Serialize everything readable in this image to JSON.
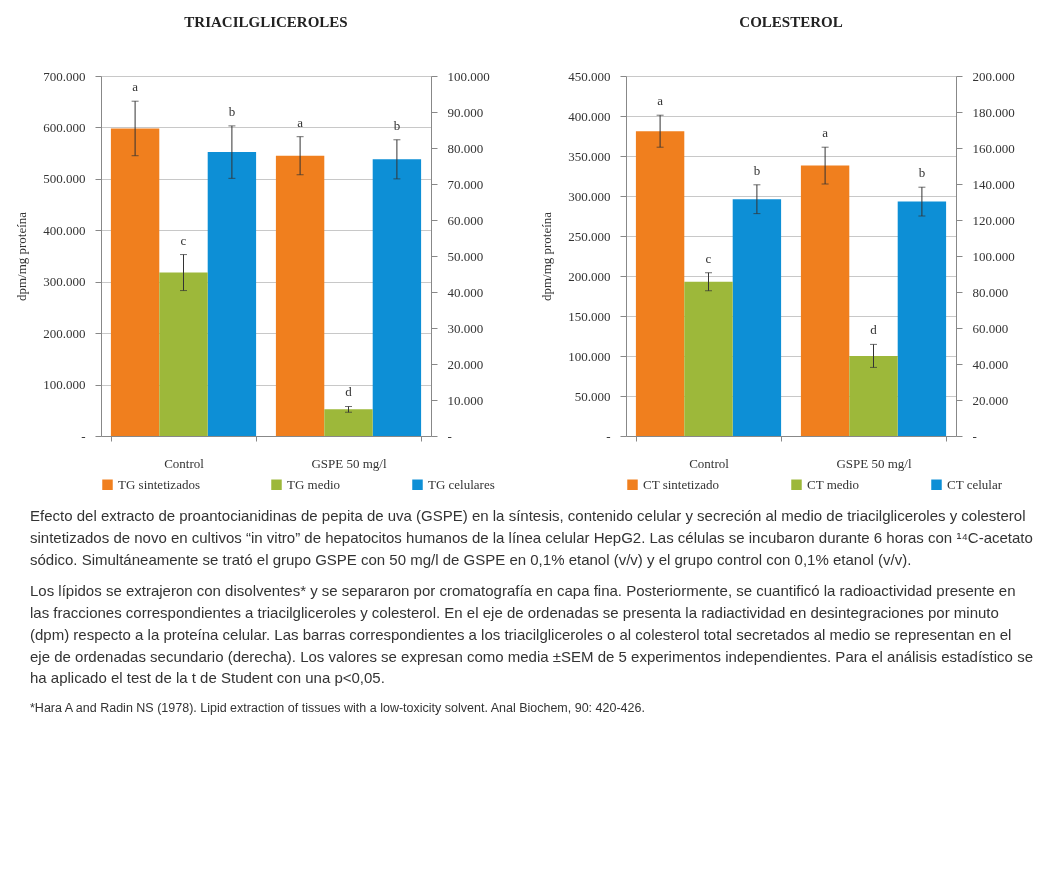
{
  "chart_data": [
    {
      "type": "bar",
      "title": "TRIACILGLICEROLES",
      "ylabel": "dpm/mg proteína",
      "categories": [
        "Control",
        "GSPE 50 mg/l"
      ],
      "series": [
        {
          "name": "TG sintetizados",
          "color": "#f07f1e",
          "values": [
            598000,
            545000
          ],
          "errors": [
            53000,
            37000
          ],
          "value_labels": [
            "a",
            "a"
          ]
        },
        {
          "name": "TG medio",
          "color": "#9db83a",
          "axis": "y2",
          "values": [
            45400,
            7400
          ],
          "errors": [
            5000,
            800
          ],
          "value_labels": [
            "c",
            "d"
          ]
        },
        {
          "name": "TG celulares",
          "color": "#0d8fd6",
          "values": [
            552000,
            538000
          ],
          "errors": [
            51000,
            38000
          ],
          "value_labels": [
            "b",
            "b"
          ]
        }
      ],
      "ylim": [
        0,
        700000
      ],
      "yticks": [
        {
          "value": 0,
          "label": "-"
        },
        {
          "value": 100000,
          "label": "100.000"
        },
        {
          "value": 200000,
          "label": "200.000"
        },
        {
          "value": 300000,
          "label": "300.000"
        },
        {
          "value": 400000,
          "label": "400.000"
        },
        {
          "value": 500000,
          "label": "500.000"
        },
        {
          "value": 600000,
          "label": "600.000"
        },
        {
          "value": 700000,
          "label": "700.000"
        }
      ],
      "y2lim": [
        0,
        100000
      ],
      "y2ticks": [
        {
          "value": 0,
          "label": "-"
        },
        {
          "value": 10000,
          "label": "10.000"
        },
        {
          "value": 20000,
          "label": "20.000"
        },
        {
          "value": 30000,
          "label": "30.000"
        },
        {
          "value": 40000,
          "label": "40.000"
        },
        {
          "value": 50000,
          "label": "50.000"
        },
        {
          "value": 60000,
          "label": "60.000"
        },
        {
          "value": 70000,
          "label": "70.000"
        },
        {
          "value": 80000,
          "label": "80.000"
        },
        {
          "value": 90000,
          "label": "90.000"
        },
        {
          "value": 100000,
          "label": "100.000"
        }
      ],
      "grid": "y",
      "legend": "bottom"
    },
    {
      "type": "bar",
      "title": "COLESTEROL",
      "ylabel": "dpm/mg proteína",
      "categories": [
        "Control",
        "GSPE 50 mg/l"
      ],
      "series": [
        {
          "name": "CT sintetizado",
          "color": "#f07f1e",
          "values": [
            381000,
            338000
          ],
          "errors": [
            20000,
            23000
          ],
          "value_labels": [
            "a",
            "a"
          ]
        },
        {
          "name": "CT medio",
          "color": "#9db83a",
          "axis": "y2",
          "values": [
            85700,
            44500
          ],
          "errors": [
            5000,
            6400
          ],
          "value_labels": [
            "c",
            "d"
          ]
        },
        {
          "name": "CT celular",
          "color": "#0d8fd6",
          "values": [
            296000,
            293000
          ],
          "errors": [
            18000,
            18000
          ],
          "value_labels": [
            "b",
            "b"
          ]
        }
      ],
      "ylim": [
        0,
        450000
      ],
      "yticks": [
        {
          "value": 0,
          "label": "-"
        },
        {
          "value": 50000,
          "label": "50.000"
        },
        {
          "value": 100000,
          "label": "100.000"
        },
        {
          "value": 150000,
          "label": "150.000"
        },
        {
          "value": 200000,
          "label": "200.000"
        },
        {
          "value": 250000,
          "label": "250.000"
        },
        {
          "value": 300000,
          "label": "300.000"
        },
        {
          "value": 350000,
          "label": "350.000"
        },
        {
          "value": 400000,
          "label": "400.000"
        },
        {
          "value": 450000,
          "label": "450.000"
        }
      ],
      "y2lim": [
        0,
        200000
      ],
      "y2ticks": [
        {
          "value": 0,
          "label": "-"
        },
        {
          "value": 20000,
          "label": "20.000"
        },
        {
          "value": 40000,
          "label": "40.000"
        },
        {
          "value": 60000,
          "label": "60.000"
        },
        {
          "value": 80000,
          "label": "80.000"
        },
        {
          "value": 100000,
          "label": "100.000"
        },
        {
          "value": 120000,
          "label": "120.000"
        },
        {
          "value": 140000,
          "label": "140.000"
        },
        {
          "value": 160000,
          "label": "160.000"
        },
        {
          "value": 180000,
          "label": "180.000"
        },
        {
          "value": 200000,
          "label": "200.000"
        }
      ],
      "grid": "y",
      "legend": "bottom"
    },
    {
      "type": "other",
      "annotations": [
        "Efecto del extracto de proantocianidinas de pepita de uva (GSPE) en la síntesis, contenido celular y secreción al medio de triacilgliceroles y colesterol sintetizados de novo en cultivos “in vitro” de hepatocitos humanos de la línea celular HepG2. Las células se incubaron durante 6 horas con ¹⁴C-acetato sódico. Simultáneamente se trató el grupo GSPE con 50 mg/l de GSPE en 0,1% etanol (v/v) y el grupo control con 0,1% etanol (v/v).",
        "Los lípidos se extrajeron con disolventes* y se separaron por cromatografía en capa fina. Posteriormente, se cuantificó la radioactividad presente en las fracciones correspondientes a triacilgliceroles y colesterol. En el eje de ordenadas se presenta la radiactividad en desintegraciones por minuto (dpm) respecto a la proteína celular. Las barras correspondientes a los triacilgliceroles o al colesterol total secretados al medio se representan en el eje de ordenadas secundario (derecha). Los valores se expresan como media ±SEM de 5 experimentos independientes. Para el análisis estadístico se ha aplicado el test de la t de Student con una p<0,05.",
        "*Hara A and Radin NS (1978). Lipid extraction of tissues with a low-toxicity solvent. Anal Biochem, 90: 420-426."
      ]
    }
  ]
}
